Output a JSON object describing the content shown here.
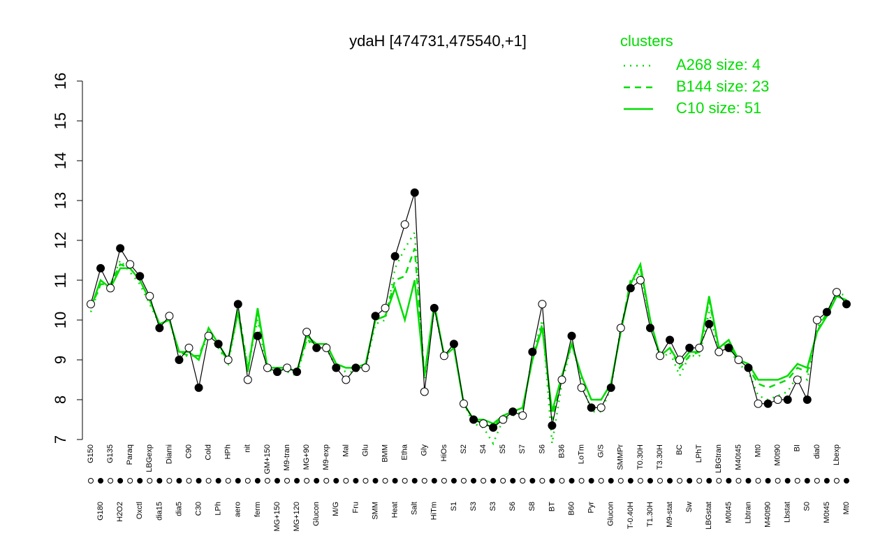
{
  "chart_data": {
    "type": "line",
    "title": "ydaH [474731,475540,+1]",
    "legend_title": "clusters",
    "legend_position": "top-right",
    "ylim": [
      7,
      16
    ],
    "yticks": [
      7,
      8,
      9,
      10,
      11,
      12,
      13,
      14,
      15,
      16
    ],
    "categories": [
      "G150",
      "G180",
      "G135",
      "H2O2",
      "Paraq",
      "Oxctl",
      "LBGexp",
      "dia15",
      "Diami",
      "dia5",
      "C90",
      "C30",
      "Cold",
      "LPh",
      "HPh",
      "aero",
      "nit",
      "ferm",
      "GM+150",
      "MG+150",
      "M9-tran",
      "MG+120",
      "MG+90",
      "Glucon",
      "M9-exp",
      "M/G",
      "Mal",
      "Fru",
      "Glu",
      "SMM",
      "BMM",
      "Heat",
      "Etha",
      "Salt",
      "Gly",
      "HiTm",
      "HiOs",
      "S1",
      "S2",
      "S3",
      "S4",
      "S3",
      "S5",
      "S6",
      "S7",
      "S8",
      "S6",
      "BT",
      "B36",
      "B60",
      "LoTm",
      "Pyr",
      "G/S",
      "Glucon",
      "SMMPr",
      "T-0.40H",
      "T0.30H",
      "T1.30H",
      "T3.30H",
      "M9-stat",
      "BC",
      "Sw",
      "LPhT",
      "LBGstat",
      "LBGtran",
      "M0t45",
      "M40t45",
      "Lbtran",
      "Mt0",
      "M40t90",
      "M0t90",
      "Lbstat",
      "BI",
      "S0",
      "dia0",
      "M0t45",
      "Lbexp",
      "Mt0"
    ],
    "points": {
      "color": "#000000",
      "values": [
        10.4,
        11.3,
        10.8,
        11.8,
        11.4,
        11.1,
        10.6,
        9.8,
        10.1,
        9.0,
        9.3,
        8.3,
        9.6,
        9.4,
        9.0,
        10.4,
        8.5,
        9.6,
        8.8,
        8.7,
        8.8,
        8.7,
        9.7,
        9.3,
        9.3,
        8.8,
        8.5,
        8.8,
        8.8,
        10.1,
        10.3,
        11.6,
        12.4,
        13.2,
        8.2,
        10.3,
        9.1,
        9.4,
        7.9,
        7.5,
        7.4,
        7.3,
        7.5,
        7.7,
        7.6,
        9.2,
        10.4,
        7.35,
        8.5,
        9.6,
        8.3,
        7.8,
        7.8,
        8.3,
        9.8,
        10.8,
        11.0,
        9.8,
        9.1,
        9.5,
        9.0,
        9.3,
        9.3,
        9.9,
        9.2,
        9.3,
        9.0,
        8.8,
        7.9,
        7.9,
        8.0,
        8.0,
        8.5,
        8.0,
        10.0,
        10.2,
        10.7,
        10.4
      ]
    },
    "series": [
      {
        "name": "A268 size: 4",
        "color": "#00dd00",
        "dash": "dotted",
        "values": [
          10.2,
          10.9,
          10.9,
          11.5,
          11.2,
          10.9,
          10.4,
          9.9,
          10.0,
          9.1,
          9.1,
          9.1,
          9.6,
          9.3,
          8.9,
          10.2,
          8.8,
          10.0,
          8.7,
          8.8,
          8.7,
          8.6,
          9.5,
          9.3,
          9.3,
          8.8,
          8.7,
          8.7,
          8.8,
          9.9,
          10.0,
          11.3,
          11.8,
          12.2,
          8.5,
          10.3,
          9.1,
          9.3,
          7.9,
          7.4,
          7.3,
          6.9,
          7.5,
          7.6,
          7.7,
          9.1,
          10.0,
          6.9,
          8.4,
          9.4,
          8.5,
          7.7,
          7.7,
          8.3,
          9.8,
          10.9,
          11.2,
          10.0,
          9.0,
          9.2,
          8.6,
          9.1,
          9.1,
          10.2,
          9.2,
          9.3,
          8.9,
          8.7,
          8.1,
          8.0,
          8.1,
          8.2,
          8.6,
          8.5,
          9.8,
          10.2,
          10.7,
          10.6
        ]
      },
      {
        "name": "B144 size: 23",
        "color": "#00dd00",
        "dash": "dashed",
        "values": [
          10.3,
          10.9,
          10.9,
          11.4,
          11.3,
          11.0,
          10.5,
          9.9,
          10.0,
          9.2,
          9.1,
          9.1,
          9.7,
          9.3,
          9.0,
          10.3,
          8.8,
          10.2,
          8.8,
          8.8,
          8.8,
          8.7,
          9.5,
          9.4,
          9.4,
          8.9,
          8.8,
          8.8,
          8.9,
          10.0,
          10.1,
          11.0,
          11.1,
          11.8,
          8.6,
          10.4,
          9.1,
          9.3,
          7.9,
          7.5,
          7.4,
          7.3,
          7.6,
          7.7,
          7.8,
          9.0,
          9.9,
          7.5,
          8.6,
          9.4,
          8.6,
          8.0,
          8.0,
          8.4,
          9.7,
          11.0,
          11.3,
          10.0,
          9.1,
          9.3,
          8.8,
          9.1,
          9.2,
          10.5,
          9.3,
          9.4,
          9.0,
          8.8,
          8.4,
          8.3,
          8.4,
          8.5,
          8.8,
          8.7,
          9.7,
          10.2,
          10.6,
          10.5
        ]
      },
      {
        "name": "C10 size: 51",
        "color": "#00dd00",
        "dash": "solid",
        "values": [
          10.3,
          11.0,
          10.8,
          11.3,
          11.3,
          11.0,
          10.5,
          9.9,
          10.0,
          9.2,
          9.2,
          9.0,
          9.8,
          9.4,
          9.0,
          10.2,
          8.7,
          10.3,
          8.8,
          8.8,
          8.8,
          8.7,
          9.6,
          9.4,
          9.4,
          8.9,
          8.8,
          8.8,
          8.9,
          10.0,
          10.1,
          10.8,
          10.0,
          11.0,
          8.6,
          10.4,
          9.1,
          9.3,
          7.9,
          7.5,
          7.5,
          7.4,
          7.6,
          7.7,
          7.8,
          9.0,
          9.8,
          7.7,
          8.6,
          9.4,
          8.6,
          8.0,
          8.0,
          8.4,
          9.7,
          10.9,
          11.4,
          10.0,
          9.1,
          9.3,
          8.9,
          9.2,
          9.2,
          10.6,
          9.3,
          9.5,
          9.0,
          8.9,
          8.5,
          8.5,
          8.5,
          8.6,
          8.9,
          8.8,
          9.7,
          10.1,
          10.6,
          10.5
        ]
      }
    ]
  }
}
